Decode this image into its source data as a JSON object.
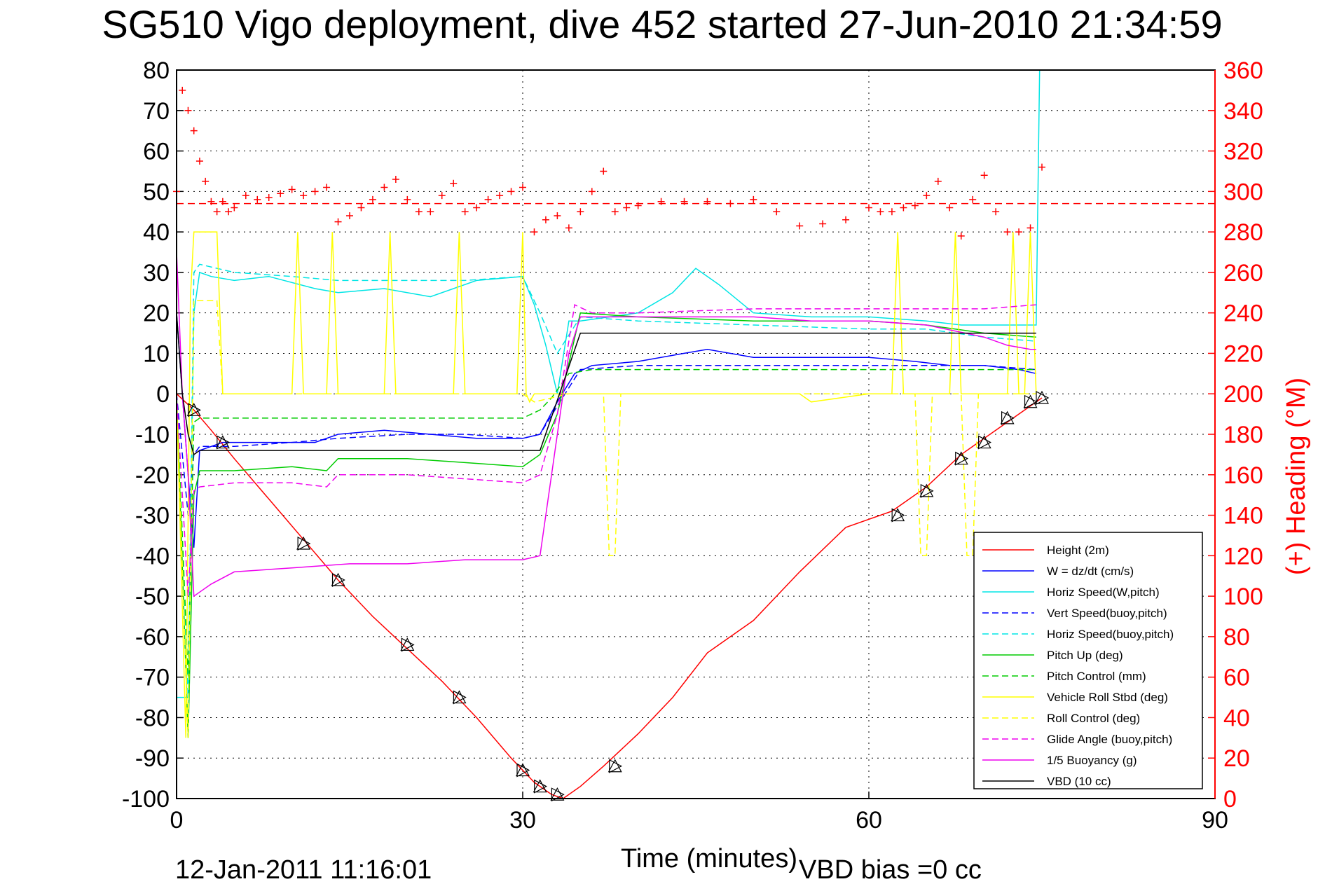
{
  "chart_data": {
    "type": "line",
    "title": "SG510 Vigo deployment, dive 452 started 27-Jun-2010 21:34:59",
    "xlabel": "Time (minutes)",
    "ylabel": "",
    "y2label": "(+) Heading (°M)",
    "xlim": [
      0,
      90
    ],
    "ylim": [
      -100,
      80
    ],
    "y2lim": [
      0,
      360
    ],
    "x_ticks": [
      "0",
      "30",
      "60",
      "90"
    ],
    "y_ticks": [
      "80",
      "70",
      "60",
      "50",
      "40",
      "30",
      "20",
      "10",
      "0",
      "-10",
      "-20",
      "-30",
      "-40",
      "-50",
      "-60",
      "-70",
      "-80",
      "-90",
      "-100"
    ],
    "y2_ticks": [
      "360",
      "340",
      "320",
      "300",
      "280",
      "260",
      "240",
      "220",
      "200",
      "180",
      "160",
      "140",
      "120",
      "100",
      "80",
      "60",
      "40",
      "20",
      "0"
    ],
    "grid": true,
    "legend_position": "bottom-right",
    "footer_date": "12-Jan-2011 11:16:01",
    "footer_bias": "VBD bias =0 cc",
    "series": [
      {
        "name": "Height (2m)",
        "color": "#ff0000",
        "style": "solid",
        "x": [
          0,
          1.5,
          3,
          5,
          8,
          11,
          14,
          17,
          20,
          23,
          26,
          29,
          31,
          32.5,
          33.5,
          35,
          37,
          40,
          43,
          46,
          50,
          54,
          58,
          62,
          65,
          68,
          71,
          74,
          75
        ],
        "y": [
          0,
          -4,
          -9,
          -16,
          -26,
          -36,
          -46,
          -55,
          -63,
          -71,
          -80,
          -90,
          -96,
          -99,
          -100,
          -97,
          -92,
          -84,
          -75,
          -64,
          -56,
          -44,
          -33,
          -29,
          -23,
          -15,
          -9,
          -3,
          -1
        ]
      },
      {
        "name": "W = dz/dt (cm/s)",
        "color": "#0000ff",
        "style": "solid",
        "x": [
          0,
          0.5,
          1,
          1.5,
          2,
          4,
          8,
          12,
          14,
          18,
          22,
          26,
          30,
          31.5,
          33,
          34.5,
          36,
          40,
          44,
          46,
          50,
          55,
          60,
          64,
          67,
          70,
          73,
          74.5
        ],
        "y": [
          20,
          0,
          -20,
          -38,
          -14,
          -12,
          -12,
          -12,
          -10,
          -9,
          -10,
          -11,
          -11,
          -10,
          -2,
          5,
          7,
          8,
          10,
          11,
          9,
          9,
          9,
          8,
          7,
          7,
          6,
          5
        ]
      },
      {
        "name": "Horiz Speed(W,pitch)",
        "color": "#00e5e5",
        "style": "solid",
        "x": [
          0,
          1,
          1.5,
          2,
          3,
          5,
          8,
          12,
          14,
          18,
          22,
          26,
          30,
          31,
          32,
          33,
          34,
          35,
          40,
          43,
          45,
          47,
          50,
          55,
          60,
          65,
          68,
          72,
          74.5,
          74.8,
          75.2
        ],
        "y": [
          -75,
          -75,
          20,
          30,
          29,
          28,
          29,
          26,
          25,
          26,
          24,
          28,
          29,
          22,
          12,
          0,
          18,
          18,
          20,
          25,
          31,
          27,
          20,
          19,
          19,
          18,
          17,
          17,
          17,
          80,
          80
        ]
      },
      {
        "name": "Vert Speed(buoy,pitch)",
        "color": "#0000ff",
        "style": "dashed",
        "x": [
          0,
          1,
          1.5,
          2,
          5,
          10,
          14,
          20,
          25,
          30,
          31.5,
          33,
          35,
          40,
          50,
          60,
          65,
          70,
          74.5
        ],
        "y": [
          0,
          -30,
          -15,
          -13,
          -13,
          -12,
          -11,
          -10,
          -10,
          -11,
          -10,
          -3,
          6,
          7,
          7,
          7,
          7,
          7,
          6
        ]
      },
      {
        "name": "Horiz Speed(buoy,pitch)",
        "color": "#00e5e5",
        "style": "dashed",
        "x": [
          0,
          1,
          1.5,
          2,
          5,
          10,
          14,
          20,
          25,
          30,
          31.5,
          33,
          35,
          40,
          50,
          60,
          65,
          70,
          74.5
        ],
        "y": [
          0,
          -75,
          30,
          32,
          30,
          29,
          28,
          28,
          28,
          29,
          20,
          10,
          19,
          18,
          17,
          16,
          16,
          14,
          13
        ]
      },
      {
        "name": "Pitch Up (deg)",
        "color": "#00cc00",
        "style": "solid",
        "x": [
          0,
          1,
          1.5,
          2,
          5,
          10,
          13,
          14,
          20,
          25,
          30,
          31.5,
          33,
          35,
          40,
          50,
          60,
          65,
          70,
          74.5
        ],
        "y": [
          0,
          -85,
          -25,
          -19,
          -19,
          -18,
          -19,
          -16,
          -16,
          -17,
          -18,
          -15,
          -5,
          20,
          19,
          18,
          18,
          17,
          15,
          14
        ]
      },
      {
        "name": "Pitch Control (mm)",
        "color": "#00cc00",
        "style": "dashed",
        "x": [
          0,
          1,
          1.5,
          2,
          5,
          10,
          20,
          30,
          31.5,
          32.5,
          34,
          36,
          40,
          50,
          60,
          70,
          74.5
        ],
        "y": [
          0,
          -70,
          -7,
          -6,
          -6,
          -6,
          -6,
          -6,
          -4,
          -1,
          5,
          6,
          6,
          6,
          6,
          6,
          6
        ]
      },
      {
        "name": "Vehicle Roll Stbd (deg)",
        "color": "#ffff00",
        "style": "solid",
        "x": [
          0,
          0.8,
          1.2,
          1.5,
          2,
          3.5,
          4,
          5,
          10,
          10.5,
          11,
          11.5,
          12,
          13,
          13.5,
          14,
          15,
          18,
          18.5,
          19,
          19.5,
          20,
          24,
          24.5,
          25,
          25.5,
          26,
          29.5,
          30,
          30.3,
          30.6,
          31,
          33,
          36,
          40,
          45,
          50,
          54,
          55,
          60,
          62,
          62.5,
          63,
          67,
          67.5,
          68,
          68.5,
          69,
          70,
          72,
          72.5,
          73,
          73.5,
          74,
          74.5
        ],
        "y": [
          0,
          -85,
          24,
          40,
          40,
          40,
          0,
          0,
          0,
          40,
          0,
          0,
          0,
          0,
          40,
          0,
          0,
          0,
          40,
          0,
          0,
          0,
          0,
          40,
          0,
          0,
          0,
          0,
          40,
          0,
          -2,
          0,
          0,
          0,
          0,
          0,
          0,
          0,
          -2,
          0,
          0,
          40,
          0,
          0,
          40,
          0,
          0,
          0,
          0,
          0,
          40,
          0,
          0,
          40,
          0
        ]
      },
      {
        "name": "Roll Control (deg)",
        "color": "#ffff00",
        "style": "dashed",
        "x": [
          0,
          1,
          1.5,
          2,
          3,
          3.5,
          4,
          10,
          10.5,
          11,
          14,
          20,
          24,
          30,
          31,
          34,
          37,
          37.5,
          38,
          38.5,
          45,
          55,
          62,
          64,
          64.5,
          65,
          65.5,
          66,
          68,
          68.5,
          69,
          69.5,
          70,
          74.5
        ],
        "y": [
          0,
          -85,
          23,
          23,
          23,
          23,
          0,
          0,
          0,
          0,
          0,
          0,
          0,
          0,
          -2,
          0,
          0,
          -40,
          -40,
          0,
          0,
          0,
          0,
          0,
          -40,
          -40,
          0,
          0,
          0,
          -40,
          -40,
          0,
          0,
          0
        ]
      },
      {
        "name": "Glide Angle (buoy,pitch)",
        "color": "#ee00ee",
        "style": "dashed",
        "x": [
          0,
          1,
          1.5,
          2,
          5,
          10,
          13,
          14,
          20,
          25,
          30,
          31.5,
          33,
          34.5,
          36,
          40,
          50,
          60,
          65,
          70,
          74.5
        ],
        "y": [
          0,
          -50,
          -24,
          -23,
          -22,
          -22,
          -23,
          -20,
          -20,
          -21,
          -22,
          -20,
          -5,
          22,
          20,
          20,
          21,
          21,
          21,
          21,
          22
        ]
      },
      {
        "name": "1/5 Buoyancy (g)",
        "color": "#ee00ee",
        "style": "solid",
        "x": [
          0,
          0.5,
          1,
          1.5,
          2,
          3,
          5,
          10,
          15,
          20,
          25,
          30,
          31.5,
          34,
          35,
          40,
          45,
          50,
          55,
          60,
          65,
          70,
          72,
          74,
          74.5
        ],
        "y": [
          35,
          0,
          -20,
          -50,
          -49,
          -47,
          -44,
          -43,
          -42,
          -42,
          -41,
          -41,
          -40,
          10,
          19,
          19,
          19,
          19,
          18,
          18,
          17,
          14,
          12,
          11,
          11
        ]
      },
      {
        "name": "VBD (10 cc)",
        "color": "#000000",
        "style": "solid",
        "x": [
          0,
          0.5,
          1,
          1.5,
          2,
          10,
          20,
          30,
          31.5,
          35,
          36,
          50,
          60,
          70,
          74.5
        ],
        "y": [
          20,
          0,
          -10,
          -15,
          -14,
          -14,
          -14,
          -14,
          -14,
          15,
          15,
          15,
          15,
          15,
          15
        ]
      },
      {
        "name": "Heading (+)",
        "color": "#ff0000",
        "style": "markers",
        "axis": "right",
        "x": [
          0,
          0.5,
          1,
          1.5,
          2,
          2.5,
          3,
          3.5,
          4,
          4.5,
          5,
          6,
          7,
          8,
          9,
          10,
          11,
          12,
          13,
          14,
          15,
          16,
          17,
          18,
          19,
          20,
          21,
          22,
          23,
          24,
          25,
          26,
          27,
          28,
          29,
          30,
          31,
          32,
          33,
          34,
          35,
          36,
          37,
          38,
          39,
          40,
          42,
          44,
          46,
          48,
          50,
          52,
          54,
          56,
          58,
          60,
          61,
          62,
          63,
          64,
          65,
          66,
          67,
          68,
          69,
          70,
          71,
          72,
          73,
          74,
          75
        ],
        "y": [
          300,
          350,
          340,
          330,
          315,
          305,
          295,
          290,
          295,
          290,
          292,
          298,
          296,
          297,
          299,
          301,
          298,
          300,
          302,
          285,
          288,
          292,
          296,
          302,
          306,
          296,
          290,
          290,
          298,
          304,
          290,
          292,
          296,
          298,
          300,
          302,
          280,
          286,
          288,
          282,
          290,
          300,
          310,
          290,
          292,
          293,
          295,
          295,
          295,
          294,
          296,
          290,
          283,
          284,
          286,
          292,
          290,
          290,
          292,
          293,
          298,
          305,
          292,
          278,
          296,
          308,
          290,
          280,
          280,
          282,
          312
        ]
      }
    ],
    "reference_lines": [
      {
        "axis": "right",
        "y": 294,
        "color": "#ff0000",
        "style": "dashed"
      }
    ],
    "markers": {
      "name": "Sample markers (triangles)",
      "color": "#000000",
      "x": [
        1.5,
        4,
        11,
        14,
        20,
        24.5,
        30,
        31.5,
        33,
        38,
        62.5,
        65,
        68,
        70,
        72,
        74,
        75
      ],
      "y": [
        -4,
        -12,
        -37,
        -46,
        -62,
        -75,
        -93,
        -97,
        -99,
        -92,
        -30,
        -24,
        -16,
        -12,
        -6,
        -2,
        -1
      ]
    }
  }
}
